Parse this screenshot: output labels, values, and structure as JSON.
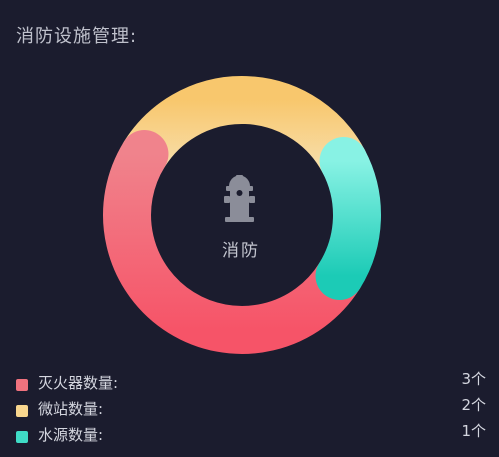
{
  "header": {
    "title": "消防设施管理:"
  },
  "center": {
    "icon": "fire-hydrant-icon",
    "label": "消防"
  },
  "chart_data": {
    "type": "pie",
    "variant": "donut",
    "categories": [
      "灭火器数量:",
      "微站数量:",
      "水源数量:"
    ],
    "values": [
      3,
      2,
      1
    ],
    "value_labels": [
      "3个",
      "2个",
      "1个"
    ],
    "colors": {
      "extinguisher": [
        "#f2727f",
        "#f7586a"
      ],
      "micro_station": [
        "#f6c46c",
        "#f7d899"
      ],
      "water_source": [
        "#7ff0e0",
        "#22cdb8"
      ]
    },
    "legend_placement": "bottom"
  }
}
